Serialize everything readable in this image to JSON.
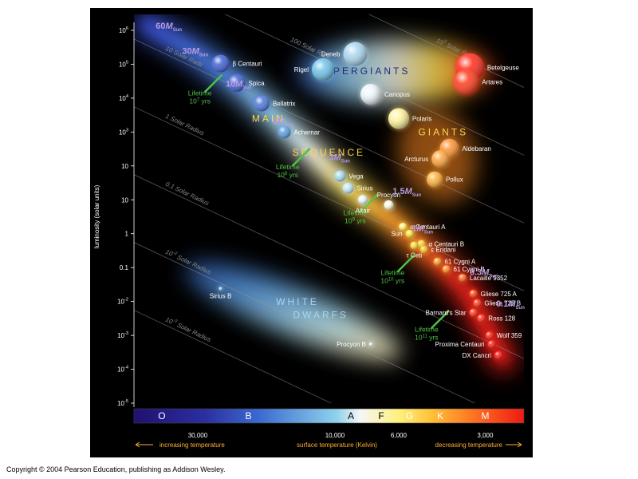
{
  "chart_data": {
    "type": "scatter",
    "ylabel": "luminosity (solar units)",
    "xlabel": "surface temperature (Kelvin)",
    "x_scale": "log",
    "x_reversed": true,
    "xlim": [
      50000,
      2200
    ],
    "y_scale": "log",
    "ylim": [
      1e-05,
      1000000
    ],
    "y_ticks": [
      {
        "value": 1000000,
        "base": "10",
        "exp": "6"
      },
      {
        "value": 100000,
        "base": "10",
        "exp": "5"
      },
      {
        "value": 10000,
        "base": "10",
        "exp": "4"
      },
      {
        "value": 1000,
        "base": "10",
        "exp": "3"
      },
      {
        "value": 100,
        "base": "10",
        "exp": ""
      },
      {
        "value": 10,
        "base": "10",
        "exp": ""
      },
      {
        "value": 1,
        "base": "1",
        "exp": ""
      },
      {
        "value": 0.1,
        "base": "0.1",
        "exp": ""
      },
      {
        "value": 0.01,
        "base": "10",
        "exp": "-2"
      },
      {
        "value": 0.001,
        "base": "10",
        "exp": "-3"
      },
      {
        "value": 0.0001,
        "base": "10",
        "exp": "-4"
      },
      {
        "value": 1e-05,
        "base": "10",
        "exp": "-5"
      }
    ],
    "x_ticks": [
      {
        "value": 30000,
        "label": "30,000"
      },
      {
        "value": 10000,
        "label": "10,000"
      },
      {
        "value": 6000,
        "label": "6,000"
      },
      {
        "value": 3000,
        "label": "3,000"
      }
    ],
    "x_notes": {
      "left": "increasing temperature",
      "right": "decreasing temperature"
    },
    "spectral_classes": [
      {
        "label": "O",
        "temp": 40000
      },
      {
        "label": "B",
        "temp": 20000
      },
      {
        "label": "A",
        "temp": 8800
      },
      {
        "label": "F",
        "temp": 6900
      },
      {
        "label": "G",
        "temp": 5500
      },
      {
        "label": "K",
        "temp": 4300
      },
      {
        "label": "M",
        "temp": 3000
      }
    ],
    "spectral_colors": [
      "#2a1b8c",
      "#2f4fc2",
      "#5fb8e6",
      "#f3f3f3",
      "#ffe04a",
      "#ff9b28",
      "#ee2a1a"
    ],
    "regions": [
      {
        "label": "SUPERGIANTS",
        "temp": 8000,
        "lum": 50000
      },
      {
        "label": "GIANTS",
        "temp": 4200,
        "lum": 800
      },
      {
        "label": "MAIN",
        "temp": 17000,
        "lum": 2000
      },
      {
        "label": "SEQUENCE",
        "temp": 10500,
        "lum": 200
      },
      {
        "label": "WHITE",
        "temp": 13500,
        "lum": 0.008
      },
      {
        "label": "DWARFS",
        "temp": 11200,
        "lum": 0.0032
      }
    ],
    "radius_lines": [
      {
        "label_base": "10",
        "label_exp": "3",
        "label_suffix": " Solar Radii",
        "radius": 1000
      },
      {
        "label_base": "100",
        "label_exp": "",
        "label_suffix": " Solar Radii",
        "radius": 100
      },
      {
        "label_base": "10",
        "label_exp": "",
        "label_suffix": " Solar Radii",
        "radius": 10
      },
      {
        "label_base": "1",
        "label_exp": "",
        "label_suffix": " Solar Radius",
        "radius": 1
      },
      {
        "label_base": "0.1",
        "label_exp": "",
        "label_suffix": " Solar Radius",
        "radius": 0.1
      },
      {
        "label_base": "10",
        "label_exp": "-2",
        "label_suffix": " Solar Radius",
        "radius": 0.01
      },
      {
        "label_base": "10",
        "label_exp": "-3",
        "label_suffix": " Solar Radius",
        "radius": 0.001
      }
    ],
    "mass_labels": [
      {
        "value": "60",
        "sub": "Sun",
        "temp": 42000,
        "lum": 1100000
      },
      {
        "value": "30",
        "sub": "Sun",
        "temp": 34000,
        "lum": 200000
      },
      {
        "value": "10",
        "sub": "Sun",
        "temp": 24000,
        "lum": 22000
      },
      {
        "value": "6",
        "sub": "Sun",
        "temp": 16500,
        "lum": 1700
      },
      {
        "value": "3",
        "sub": "Sun",
        "temp": 10500,
        "lum": 150
      },
      {
        "value": "1.5",
        "sub": "Sun",
        "temp": 6300,
        "lum": 15
      },
      {
        "value": "1",
        "sub": "Sun",
        "temp": 5400,
        "lum": 1.2
      },
      {
        "value": "0.3",
        "sub": "Sun",
        "temp": 3400,
        "lum": 0.06
      },
      {
        "value": "0.1",
        "sub": "Sun",
        "temp": 2750,
        "lum": 0.007
      }
    ],
    "lifetimes": [
      {
        "text": "Lifetime",
        "value": "10",
        "exp": "7",
        "unit": "yrs",
        "temp": 29500,
        "lum": 12000
      },
      {
        "text": "Lifetime",
        "value": "10",
        "exp": "8",
        "unit": "yrs",
        "temp": 14600,
        "lum": 80
      },
      {
        "text": "Lifetime",
        "value": "10",
        "exp": "9",
        "unit": "yrs",
        "temp": 8500,
        "lum": 3.5
      },
      {
        "text": "Lifetime",
        "value": "10",
        "exp": "10",
        "unit": "yrs",
        "temp": 6300,
        "lum": 0.06
      },
      {
        "text": "Lifetime",
        "value": "10",
        "exp": "11",
        "unit": "yrs",
        "temp": 4800,
        "lum": 0.0013
      }
    ],
    "stars": [
      {
        "name": "Deneb",
        "temp": 8500,
        "lum": 200000,
        "r": 15,
        "color": "#a9d6f0",
        "label_pos": "left"
      },
      {
        "name": "Rigel",
        "temp": 11000,
        "lum": 70000,
        "r": 14,
        "color": "#6ec2e8",
        "label_pos": "left"
      },
      {
        "name": "Betelgeuse",
        "temp": 3400,
        "lum": 80000,
        "r": 18,
        "color": "#ff2a1a",
        "label_pos": "right"
      },
      {
        "name": "Artares",
        "temp": 3500,
        "lum": 30000,
        "r": 16,
        "color": "#ff3a1a",
        "label_pos": "right"
      },
      {
        "name": "Canopus",
        "temp": 7500,
        "lum": 13000,
        "r": 13,
        "color": "#ecf6fb",
        "label_pos": "right"
      },
      {
        "name": "Polaris",
        "temp": 6000,
        "lum": 2500,
        "r": 13,
        "color": "#fff29a",
        "label_pos": "right"
      },
      {
        "name": "Aldebaran",
        "temp": 4000,
        "lum": 330,
        "r": 12,
        "color": "#ff9330",
        "label_pos": "right"
      },
      {
        "name": "Arcturus",
        "temp": 4300,
        "lum": 160,
        "r": 11,
        "color": "#ffa238",
        "label_pos": "left"
      },
      {
        "name": "Pollux",
        "temp": 4500,
        "lum": 40,
        "r": 10,
        "color": "#ffb038",
        "label_pos": "right"
      },
      {
        "name": "β Centauri",
        "temp": 25000,
        "lum": 105000,
        "r": 11,
        "color": "#3e5fd0",
        "label_pos": "right"
      },
      {
        "name": "Spica",
        "temp": 22000,
        "lum": 28000,
        "r": 11,
        "color": "#3e5fd0",
        "label_pos": "right"
      },
      {
        "name": "Bellatrix",
        "temp": 18000,
        "lum": 7000,
        "r": 10,
        "color": "#4b77d8",
        "label_pos": "right"
      },
      {
        "name": "Achernar",
        "temp": 15000,
        "lum": 1000,
        "r": 8,
        "color": "#5c9ce0",
        "label_pos": "right"
      },
      {
        "name": "Vega",
        "temp": 9600,
        "lum": 50,
        "r": 7,
        "color": "#a7dcef",
        "label_pos": "right"
      },
      {
        "name": "Sirius",
        "temp": 9000,
        "lum": 22,
        "r": 7,
        "color": "#c0e6f3",
        "label_pos": "right"
      },
      {
        "name": "Altair",
        "temp": 8000,
        "lum": 10,
        "r": 6,
        "color": "#e8f5fa",
        "label_pos": "below"
      },
      {
        "name": "Procyon",
        "temp": 6500,
        "lum": 7,
        "r": 6,
        "color": "#fffbe0",
        "label_pos": "above"
      },
      {
        "name": "α Centauri A",
        "temp": 5800,
        "lum": 1.6,
        "r": 5,
        "color": "#fff06a",
        "label_pos": "right"
      },
      {
        "name": "Sun",
        "temp": 5500,
        "lum": 1,
        "r": 5,
        "color": "#ffe63a",
        "label_pos": "left"
      },
      {
        "name": "α Centauri B",
        "temp": 5000,
        "lum": 0.5,
        "r": 5,
        "color": "#ffcc30",
        "label_pos": "right"
      },
      {
        "name": "τ Ceti",
        "temp": 5300,
        "lum": 0.45,
        "r": 5,
        "color": "#ffd834",
        "label_pos": "below"
      },
      {
        "name": "ε Eridani",
        "temp": 4900,
        "lum": 0.34,
        "r": 5,
        "color": "#ffbd2c",
        "label_pos": "right"
      },
      {
        "name": "61 Cygni A",
        "temp": 4400,
        "lum": 0.15,
        "r": 5,
        "color": "#ff9e28",
        "label_pos": "right"
      },
      {
        "name": "61 Cygni B",
        "temp": 4100,
        "lum": 0.09,
        "r": 5,
        "color": "#ff8a24",
        "label_pos": "right"
      },
      {
        "name": "Lacaille 9352",
        "temp": 3600,
        "lum": 0.05,
        "r": 5,
        "color": "#ff6c20",
        "label_pos": "right"
      },
      {
        "name": "Gliese 725 A",
        "temp": 3300,
        "lum": 0.017,
        "r": 5,
        "color": "#ff4a1c",
        "label_pos": "right"
      },
      {
        "name": "Gliese 725 B",
        "temp": 3200,
        "lum": 0.009,
        "r": 5,
        "color": "#ff3c1a",
        "label_pos": "right"
      },
      {
        "name": "Barnard's Star",
        "temp": 3300,
        "lum": 0.0047,
        "r": 5,
        "color": "#ff3a1a",
        "label_pos": "left"
      },
      {
        "name": "Ross 128",
        "temp": 3100,
        "lum": 0.0032,
        "r": 5,
        "color": "#ff2e18",
        "label_pos": "right"
      },
      {
        "name": "Wolf 359",
        "temp": 2900,
        "lum": 0.001,
        "r": 5,
        "color": "#ff2418",
        "label_pos": "right"
      },
      {
        "name": "Proxima Centauri",
        "temp": 2850,
        "lum": 0.00055,
        "r": 5,
        "color": "#ff2018",
        "label_pos": "left"
      },
      {
        "name": "DX Cancri",
        "temp": 2700,
        "lum": 0.00026,
        "r": 5,
        "color": "#ff1a18",
        "label_pos": "left"
      },
      {
        "name": "Sirius B",
        "temp": 25000,
        "lum": 0.024,
        "r": 2,
        "color": "#bcdfff",
        "label_pos": "below"
      },
      {
        "name": "Procyon B",
        "temp": 7500,
        "lum": 0.00055,
        "r": 2,
        "color": "#ffffff",
        "label_pos": "left"
      }
    ]
  },
  "copyright": "Copyright © 2004 Pearson Education, publishing as Addison Wesley."
}
